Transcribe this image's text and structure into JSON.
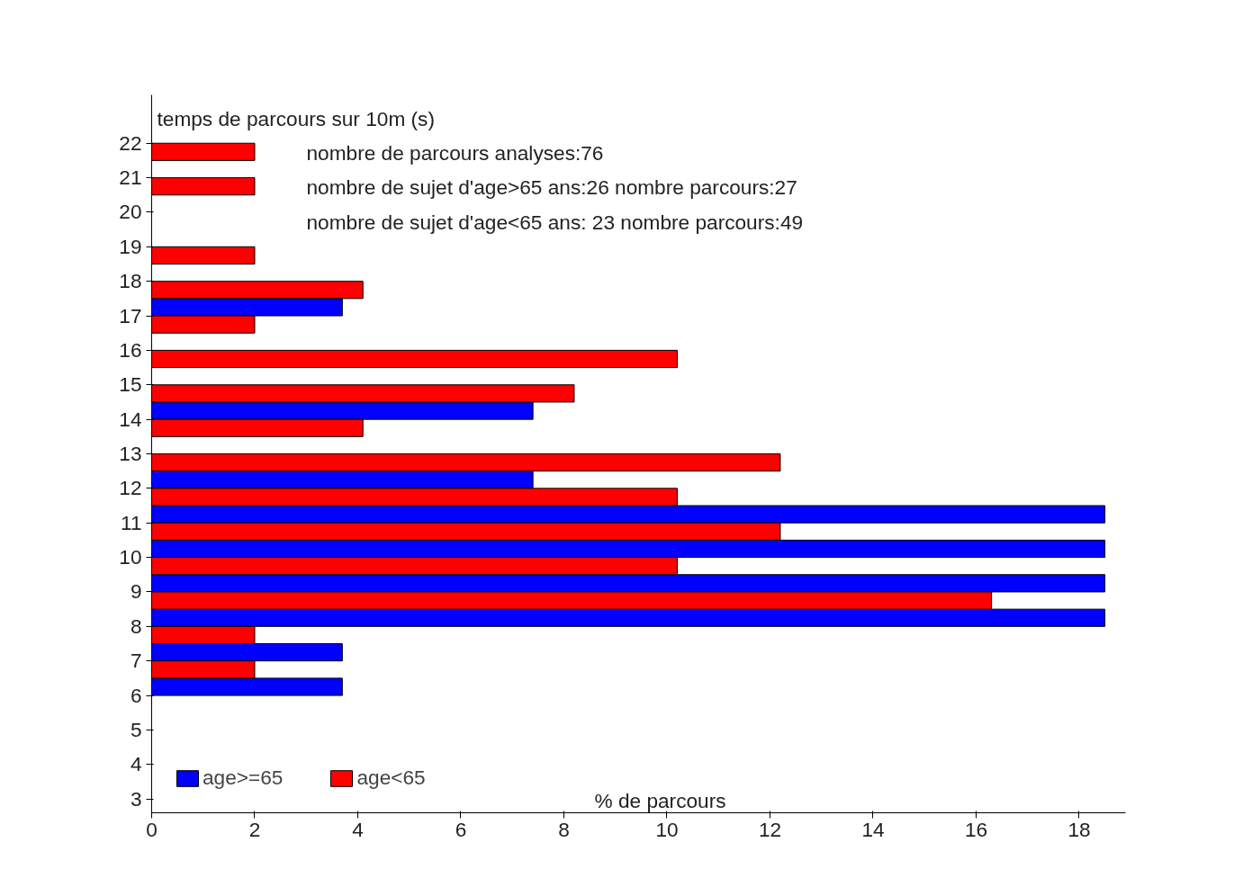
{
  "chart_data": {
    "type": "bar",
    "orientation": "horizontal",
    "ylabel": "temps de parcours sur 10m (s)",
    "xlabel": "% de parcours",
    "annotations": [
      "nombre de parcours analyses:76",
      "nombre de sujet d'age>65 ans:26 nombre parcours:27",
      "nombre de sujet d'age<65 ans: 23 nombre parcours:49"
    ],
    "series": [
      {
        "name": "age>=65",
        "color": "#0000ff",
        "x": [
          6.25,
          7.25,
          8.25,
          9.25,
          10.25,
          11.25,
          12.25,
          14.25,
          17.25
        ],
        "values": [
          3.7,
          3.7,
          18.5,
          18.5,
          18.5,
          18.5,
          7.4,
          7.4,
          3.7
        ]
      },
      {
        "name": "age<65",
        "color": "#ff0000",
        "x": [
          6.75,
          7.75,
          8.75,
          9.75,
          10.75,
          11.75,
          12.75,
          13.75,
          14.75,
          15.75,
          16.75,
          17.75,
          18.75,
          20.75,
          21.75
        ],
        "values": [
          2.0,
          2.0,
          16.3,
          10.2,
          12.2,
          10.2,
          12.2,
          4.1,
          8.2,
          10.2,
          2.0,
          4.1,
          2.0,
          2.0,
          2.0
        ]
      }
    ],
    "xlim": [
      0,
      18.9
    ],
    "xticks": [
      0,
      2,
      4,
      6,
      8,
      10,
      12,
      14,
      16,
      18
    ],
    "ylim": [
      2.6,
      23.4
    ],
    "yticks": [
      3,
      4,
      5,
      6,
      7,
      8,
      9,
      10,
      11,
      12,
      13,
      14,
      15,
      16,
      17,
      18,
      19,
      20,
      21,
      22
    ],
    "grid": false,
    "legend": "bottom left"
  }
}
